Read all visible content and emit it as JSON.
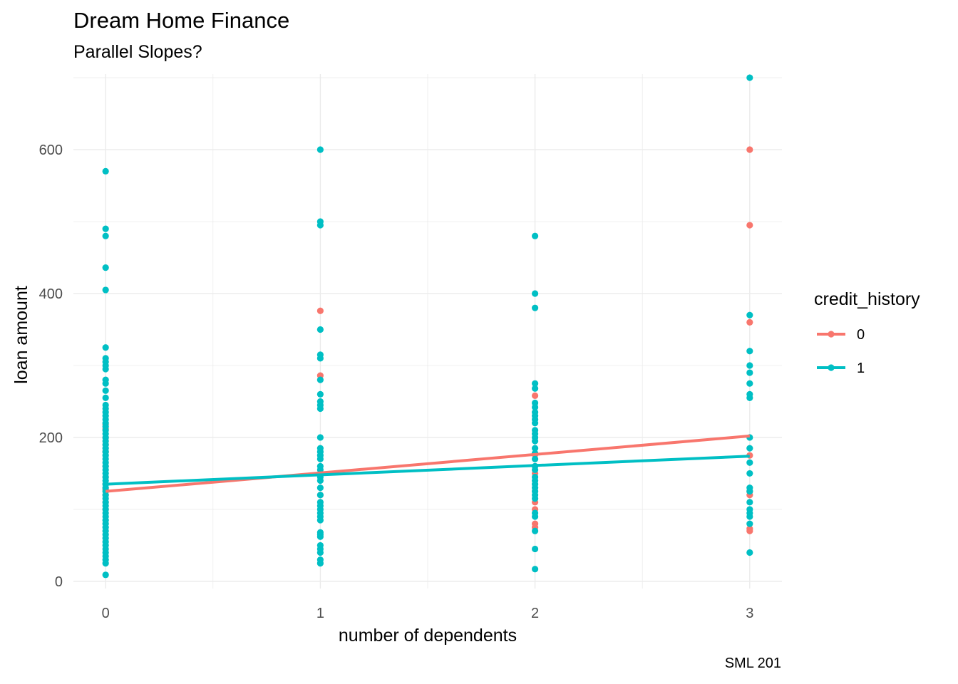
{
  "title": "Dream Home Finance",
  "subtitle": "Parallel Slopes?",
  "caption": "SML 201",
  "chart_data": {
    "type": "scatter",
    "xlabel": "number of dependents",
    "ylabel": "loan amount",
    "xlim": [
      -0.15,
      3.15
    ],
    "ylim": [
      -10,
      705
    ],
    "x_ticks": [
      "0",
      "1",
      "2",
      "3"
    ],
    "y_ticks": [
      "0",
      "200",
      "400",
      "600"
    ],
    "grid": true,
    "legend": {
      "title": "credit_history",
      "position": "right",
      "entries": [
        {
          "label": "0",
          "color": "#F8766D"
        },
        {
          "label": "1",
          "color": "#00BFC4"
        }
      ]
    },
    "series": [
      {
        "name": "0",
        "color": "#F8766D",
        "points": [
          [
            0,
            218
          ],
          [
            0,
            212
          ],
          [
            0,
            200
          ],
          [
            0,
            190
          ],
          [
            0,
            180
          ],
          [
            0,
            160
          ],
          [
            0,
            145
          ],
          [
            0,
            135
          ],
          [
            0,
            128
          ],
          [
            0,
            120
          ],
          [
            0,
            110
          ],
          [
            0,
            100
          ],
          [
            1,
            376
          ],
          [
            1,
            286
          ],
          [
            1,
            150
          ],
          [
            1,
            120
          ],
          [
            2,
            258
          ],
          [
            2,
            176
          ],
          [
            2,
            160
          ],
          [
            2,
            150
          ],
          [
            2,
            110
          ],
          [
            2,
            100
          ],
          [
            2,
            80
          ],
          [
            2,
            75
          ],
          [
            3,
            600
          ],
          [
            3,
            495
          ],
          [
            3,
            360
          ],
          [
            3,
            175
          ],
          [
            3,
            125
          ],
          [
            3,
            120
          ],
          [
            3,
            73
          ],
          [
            3,
            70
          ]
        ],
        "fit": {
          "x": [
            0,
            3
          ],
          "y": [
            125,
            202
          ]
        }
      },
      {
        "name": "1",
        "color": "#00BFC4",
        "points": [
          [
            0,
            570
          ],
          [
            0,
            490
          ],
          [
            0,
            480
          ],
          [
            0,
            436
          ],
          [
            0,
            405
          ],
          [
            0,
            325
          ],
          [
            0,
            310
          ],
          [
            0,
            305
          ],
          [
            0,
            300
          ],
          [
            0,
            295
          ],
          [
            0,
            280
          ],
          [
            0,
            275
          ],
          [
            0,
            265
          ],
          [
            0,
            255
          ],
          [
            0,
            245
          ],
          [
            0,
            240
          ],
          [
            0,
            235
          ],
          [
            0,
            230
          ],
          [
            0,
            225
          ],
          [
            0,
            220
          ],
          [
            0,
            215
          ],
          [
            0,
            210
          ],
          [
            0,
            205
          ],
          [
            0,
            200
          ],
          [
            0,
            195
          ],
          [
            0,
            190
          ],
          [
            0,
            185
          ],
          [
            0,
            180
          ],
          [
            0,
            175
          ],
          [
            0,
            170
          ],
          [
            0,
            165
          ],
          [
            0,
            160
          ],
          [
            0,
            155
          ],
          [
            0,
            150
          ],
          [
            0,
            145
          ],
          [
            0,
            140
          ],
          [
            0,
            135
          ],
          [
            0,
            130
          ],
          [
            0,
            125
          ],
          [
            0,
            120
          ],
          [
            0,
            115
          ],
          [
            0,
            110
          ],
          [
            0,
            105
          ],
          [
            0,
            100
          ],
          [
            0,
            95
          ],
          [
            0,
            90
          ],
          [
            0,
            85
          ],
          [
            0,
            80
          ],
          [
            0,
            75
          ],
          [
            0,
            70
          ],
          [
            0,
            65
          ],
          [
            0,
            60
          ],
          [
            0,
            55
          ],
          [
            0,
            50
          ],
          [
            0,
            45
          ],
          [
            0,
            40
          ],
          [
            0,
            35
          ],
          [
            0,
            30
          ],
          [
            0,
            25
          ],
          [
            0,
            9
          ],
          [
            1,
            600
          ],
          [
            1,
            500
          ],
          [
            1,
            495
          ],
          [
            1,
            350
          ],
          [
            1,
            315
          ],
          [
            1,
            310
          ],
          [
            1,
            280
          ],
          [
            1,
            260
          ],
          [
            1,
            250
          ],
          [
            1,
            245
          ],
          [
            1,
            240
          ],
          [
            1,
            200
          ],
          [
            1,
            185
          ],
          [
            1,
            180
          ],
          [
            1,
            175
          ],
          [
            1,
            170
          ],
          [
            1,
            160
          ],
          [
            1,
            155
          ],
          [
            1,
            150
          ],
          [
            1,
            145
          ],
          [
            1,
            140
          ],
          [
            1,
            130
          ],
          [
            1,
            120
          ],
          [
            1,
            110
          ],
          [
            1,
            105
          ],
          [
            1,
            100
          ],
          [
            1,
            95
          ],
          [
            1,
            90
          ],
          [
            1,
            85
          ],
          [
            1,
            68
          ],
          [
            1,
            65
          ],
          [
            1,
            62
          ],
          [
            1,
            50
          ],
          [
            1,
            45
          ],
          [
            1,
            40
          ],
          [
            1,
            30
          ],
          [
            1,
            25
          ],
          [
            2,
            480
          ],
          [
            2,
            400
          ],
          [
            2,
            380
          ],
          [
            2,
            275
          ],
          [
            2,
            268
          ],
          [
            2,
            248
          ],
          [
            2,
            242
          ],
          [
            2,
            235
          ],
          [
            2,
            230
          ],
          [
            2,
            225
          ],
          [
            2,
            220
          ],
          [
            2,
            210
          ],
          [
            2,
            205
          ],
          [
            2,
            200
          ],
          [
            2,
            195
          ],
          [
            2,
            185
          ],
          [
            2,
            178
          ],
          [
            2,
            170
          ],
          [
            2,
            160
          ],
          [
            2,
            155
          ],
          [
            2,
            145
          ],
          [
            2,
            140
          ],
          [
            2,
            135
          ],
          [
            2,
            130
          ],
          [
            2,
            125
          ],
          [
            2,
            120
          ],
          [
            2,
            115
          ],
          [
            2,
            95
          ],
          [
            2,
            90
          ],
          [
            2,
            70
          ],
          [
            2,
            45
          ],
          [
            2,
            17
          ],
          [
            3,
            700
          ],
          [
            3,
            370
          ],
          [
            3,
            320
          ],
          [
            3,
            300
          ],
          [
            3,
            290
          ],
          [
            3,
            275
          ],
          [
            3,
            260
          ],
          [
            3,
            255
          ],
          [
            3,
            200
          ],
          [
            3,
            185
          ],
          [
            3,
            165
          ],
          [
            3,
            150
          ],
          [
            3,
            130
          ],
          [
            3,
            125
          ],
          [
            3,
            110
          ],
          [
            3,
            100
          ],
          [
            3,
            95
          ],
          [
            3,
            90
          ],
          [
            3,
            80
          ],
          [
            3,
            40
          ]
        ],
        "fit": {
          "x": [
            0,
            3
          ],
          "y": [
            135,
            174
          ]
        }
      }
    ]
  }
}
